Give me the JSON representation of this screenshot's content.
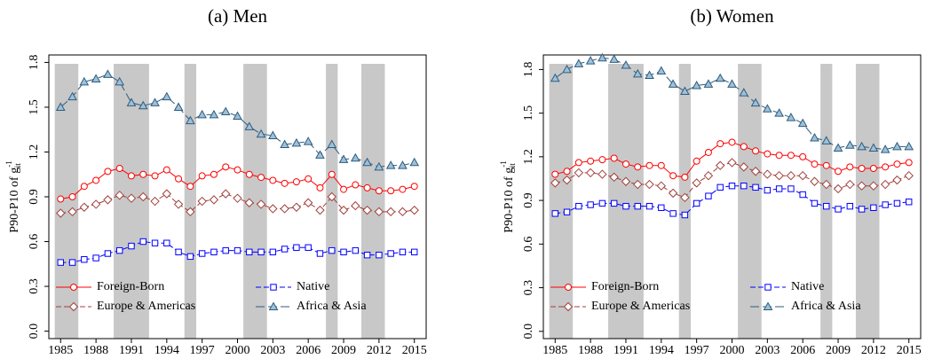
{
  "chart_data": [
    {
      "type": "line",
      "title": "(a) Men",
      "ylabel": "P90-P10 of g",
      "ylabel_sup": "-1",
      "ylabel_sub": "it",
      "x": [
        1985,
        1986,
        1987,
        1988,
        1989,
        1990,
        1991,
        1992,
        1993,
        1994,
        1995,
        1996,
        1997,
        1998,
        1999,
        2000,
        2001,
        2002,
        2003,
        2004,
        2005,
        2006,
        2007,
        2008,
        2009,
        2010,
        2011,
        2012,
        2013,
        2014,
        2015
      ],
      "xlim": [
        1984,
        2016
      ],
      "xticks": [
        1985,
        1988,
        1991,
        1994,
        1997,
        2000,
        2003,
        2006,
        2009,
        2012,
        2015
      ],
      "ylim": [
        -0.05,
        1.85
      ],
      "yticks": [
        {
          "value": 0,
          "label": "0.0"
        },
        0.3,
        0.6,
        0.9,
        1.2,
        1.5,
        1.8
      ],
      "shaded_x": [
        [
          1984.5,
          1986.5
        ],
        [
          1989.5,
          1992.5
        ],
        [
          1995.5,
          1996.5
        ],
        [
          2000.5,
          2002.5
        ],
        [
          2007.5,
          2008.5
        ],
        [
          2010.5,
          2012.5
        ]
      ],
      "shade_color": "#c8c8c8",
      "legend": "bottom",
      "series": [
        {
          "name": "Foreign-Born",
          "color": "#ff0000",
          "marker": "circle",
          "line_style": "solid",
          "values": [
            0.885,
            0.9,
            0.97,
            1.01,
            1.07,
            1.09,
            1.04,
            1.05,
            1.04,
            1.08,
            1.02,
            0.97,
            1.04,
            1.05,
            1.1,
            1.08,
            1.05,
            1.03,
            1.01,
            0.99,
            1.0,
            1.02,
            0.96,
            1.05,
            0.95,
            0.98,
            0.96,
            0.94,
            0.94,
            0.95,
            0.97
          ]
        },
        {
          "name": "Native",
          "color": "#0000ff",
          "marker": "square",
          "line_style": "dashed",
          "values": [
            0.46,
            0.46,
            0.48,
            0.49,
            0.52,
            0.54,
            0.57,
            0.6,
            0.59,
            0.59,
            0.53,
            0.5,
            0.52,
            0.53,
            0.54,
            0.54,
            0.53,
            0.53,
            0.53,
            0.55,
            0.56,
            0.56,
            0.52,
            0.54,
            0.53,
            0.54,
            0.51,
            0.51,
            0.52,
            0.53,
            0.53
          ]
        },
        {
          "name": "Europe & Americas",
          "color": "#a0403c",
          "marker": "diamond",
          "line_style": "dashed",
          "values": [
            0.79,
            0.8,
            0.83,
            0.85,
            0.88,
            0.91,
            0.89,
            0.9,
            0.87,
            0.92,
            0.85,
            0.8,
            0.87,
            0.88,
            0.92,
            0.89,
            0.86,
            0.85,
            0.82,
            0.82,
            0.83,
            0.86,
            0.81,
            0.9,
            0.81,
            0.84,
            0.81,
            0.8,
            0.8,
            0.8,
            0.81
          ]
        },
        {
          "name": "Africa & Asia",
          "color": "#2e5c7e",
          "marker": "triangle",
          "line_style": "longdash",
          "values": [
            1.5,
            1.57,
            1.67,
            1.69,
            1.72,
            1.67,
            1.53,
            1.51,
            1.53,
            1.57,
            1.5,
            1.41,
            1.45,
            1.45,
            1.47,
            1.44,
            1.37,
            1.32,
            1.31,
            1.25,
            1.26,
            1.27,
            1.18,
            1.25,
            1.15,
            1.16,
            1.13,
            1.1,
            1.11,
            1.11,
            1.13
          ]
        }
      ]
    },
    {
      "type": "line",
      "title": "(b) Women",
      "ylabel": "P90-P10 of g",
      "ylabel_sup": "-1",
      "ylabel_sub": "it",
      "x": [
        1985,
        1986,
        1987,
        1988,
        1989,
        1990,
        1991,
        1992,
        1993,
        1994,
        1995,
        1996,
        1997,
        1998,
        1999,
        2000,
        2001,
        2002,
        2003,
        2004,
        2005,
        2006,
        2007,
        2008,
        2009,
        2010,
        2011,
        2012,
        2013,
        2014,
        2015
      ],
      "xlim": [
        1984,
        2016
      ],
      "xticks": [
        1985,
        1988,
        1991,
        1994,
        1997,
        2000,
        2003,
        2006,
        2009,
        2012,
        2015
      ],
      "ylim": [
        -0.05,
        1.9
      ],
      "yticks": [
        {
          "value": 0,
          "label": "0.0"
        },
        0.3,
        0.6,
        0.9,
        1.2,
        1.5,
        1.8
      ],
      "shaded_x": [
        [
          1984.5,
          1986.5
        ],
        [
          1989.5,
          1992.5
        ],
        [
          1995.5,
          1996.5
        ],
        [
          2000.5,
          2002.5
        ],
        [
          2007.5,
          2008.5
        ],
        [
          2010.5,
          2012.5
        ]
      ],
      "shade_color": "#c8c8c8",
      "legend": "bottom",
      "series": [
        {
          "name": "Foreign-Born",
          "color": "#ff0000",
          "marker": "circle",
          "line_style": "solid",
          "values": [
            1.08,
            1.1,
            1.16,
            1.17,
            1.18,
            1.19,
            1.15,
            1.13,
            1.14,
            1.14,
            1.07,
            1.06,
            1.17,
            1.23,
            1.29,
            1.3,
            1.27,
            1.24,
            1.22,
            1.21,
            1.21,
            1.2,
            1.15,
            1.14,
            1.1,
            1.13,
            1.12,
            1.12,
            1.13,
            1.15,
            1.16
          ]
        },
        {
          "name": "Native",
          "color": "#0000ff",
          "marker": "square",
          "line_style": "dashed",
          "values": [
            0.81,
            0.82,
            0.86,
            0.87,
            0.88,
            0.88,
            0.86,
            0.86,
            0.86,
            0.85,
            0.81,
            0.8,
            0.88,
            0.93,
            0.99,
            1.0,
            1.0,
            0.99,
            0.97,
            0.98,
            0.98,
            0.94,
            0.88,
            0.86,
            0.84,
            0.86,
            0.84,
            0.85,
            0.87,
            0.88,
            0.89
          ]
        },
        {
          "name": "Europe & Americas",
          "color": "#a0403c",
          "marker": "diamond",
          "line_style": "dashed",
          "values": [
            1.02,
            1.04,
            1.09,
            1.09,
            1.08,
            1.06,
            1.03,
            1.01,
            1.01,
            1.0,
            0.95,
            0.92,
            1.02,
            1.07,
            1.14,
            1.16,
            1.13,
            1.1,
            1.08,
            1.07,
            1.07,
            1.07,
            1.03,
            1.01,
            0.98,
            1.01,
            1.0,
            1.0,
            1.01,
            1.04,
            1.07
          ]
        },
        {
          "name": "Africa & Asia",
          "color": "#2e5c7e",
          "marker": "triangle",
          "line_style": "longdash",
          "values": [
            1.74,
            1.8,
            1.84,
            1.86,
            1.88,
            1.87,
            1.83,
            1.77,
            1.76,
            1.79,
            1.7,
            1.65,
            1.69,
            1.7,
            1.74,
            1.7,
            1.64,
            1.57,
            1.53,
            1.5,
            1.47,
            1.43,
            1.33,
            1.31,
            1.26,
            1.28,
            1.27,
            1.26,
            1.25,
            1.27,
            1.27
          ]
        }
      ]
    }
  ]
}
